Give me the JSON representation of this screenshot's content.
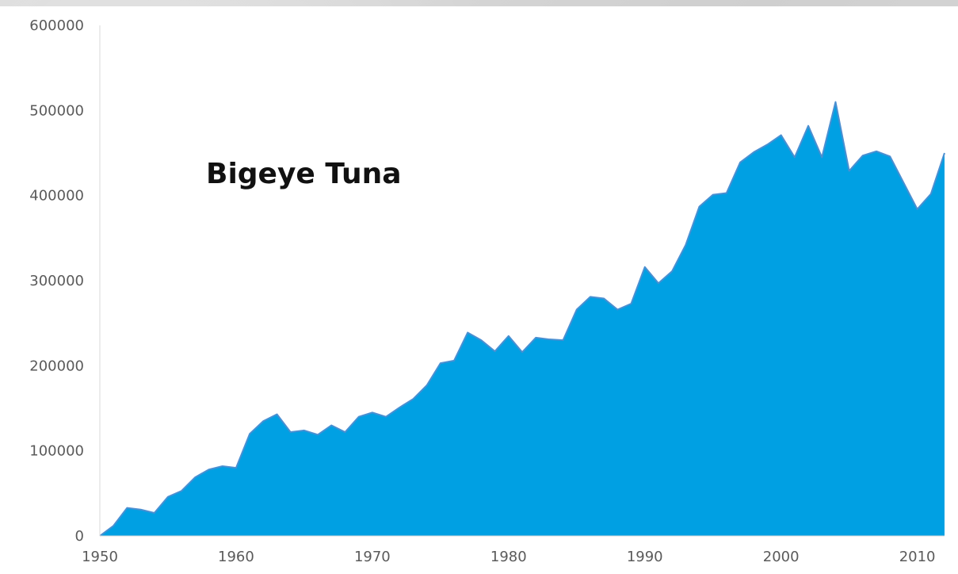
{
  "chart_data": {
    "type": "area",
    "title": "Bigeye Tuna",
    "xlabel": "",
    "ylabel": "",
    "xlim": [
      1950,
      2012
    ],
    "ylim": [
      0,
      600000
    ],
    "x_ticks": [
      1950,
      1960,
      1970,
      1980,
      1990,
      2000,
      2010
    ],
    "y_ticks": [
      0,
      100000,
      200000,
      300000,
      400000,
      500000,
      600000
    ],
    "grid": false,
    "legend": "none",
    "series": [
      {
        "color": "#00a0e3",
        "x": [
          1950,
          1951,
          1952,
          1953,
          1954,
          1955,
          1956,
          1957,
          1958,
          1959,
          1960,
          1961,
          1962,
          1963,
          1964,
          1965,
          1966,
          1967,
          1968,
          1969,
          1970,
          1971,
          1972,
          1973,
          1974,
          1975,
          1976,
          1977,
          1978,
          1979,
          1980,
          1981,
          1982,
          1983,
          1984,
          1985,
          1986,
          1987,
          1988,
          1989,
          1990,
          1991,
          1992,
          1993,
          1994,
          1995,
          1996,
          1997,
          1998,
          1999,
          2000,
          2001,
          2002,
          2003,
          2004,
          2005,
          2006,
          2007,
          2008,
          2009,
          2010,
          2011,
          2012
        ],
        "values": [
          0,
          12000,
          33000,
          31000,
          27000,
          46000,
          53000,
          69000,
          78000,
          82000,
          80000,
          120000,
          135000,
          143000,
          122000,
          124000,
          119000,
          130000,
          122000,
          140000,
          145000,
          140000,
          151000,
          161000,
          177000,
          203000,
          206000,
          239000,
          230000,
          217000,
          235000,
          216000,
          233000,
          231000,
          230000,
          266000,
          281000,
          279000,
          266000,
          273000,
          316000,
          297000,
          311000,
          342000,
          387000,
          401000,
          403000,
          439000,
          451000,
          460000,
          471000,
          445000,
          482000,
          445000,
          510000,
          429000,
          447000,
          452000,
          446000,
          415000,
          384000,
          402000,
          450000
        ]
      }
    ]
  },
  "colors": {
    "area_fill": "#00a0e3",
    "area_stroke": "#4a8fd1",
    "axis_line": "#d9d9d9"
  }
}
